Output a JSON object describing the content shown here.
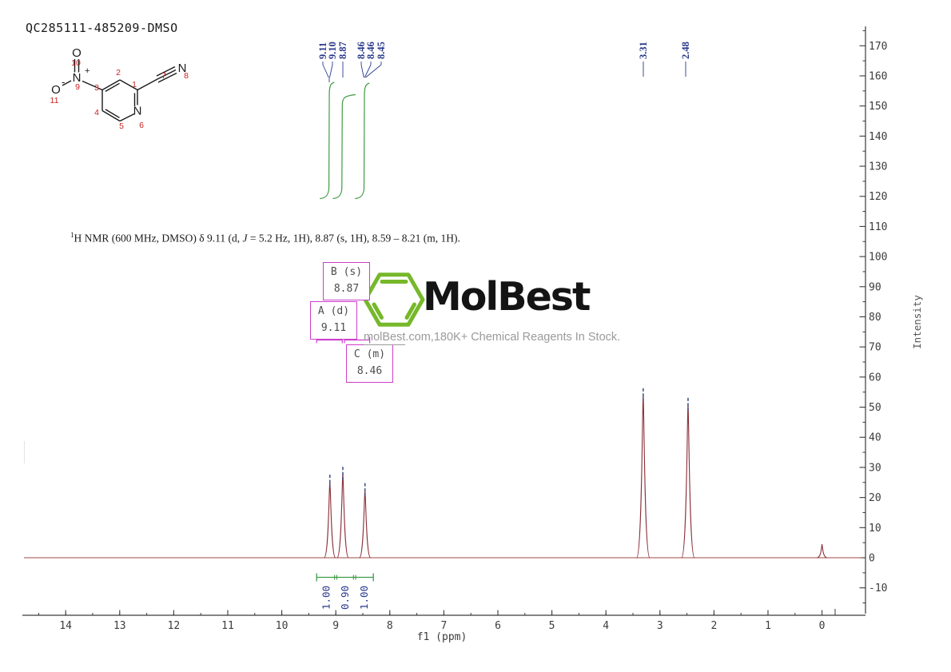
{
  "title": "QC285111-485209-DMSO",
  "annotation": {
    "sup": "1",
    "pre": "H NMR (600 MHz, DMSO) δ 9.11 (d, ",
    "j": "J",
    "post": " = 5.2 Hz, 1H), 8.87 (s, 1H), 8.59 – 8.21 (m, 1H)."
  },
  "structure": {
    "atom_symbols": {
      "ring_n": "N",
      "nitrile_n": "N",
      "nitro_n": "N",
      "o_top": "O",
      "o_left": "O"
    },
    "charges": {
      "plus": "+",
      "minus": "-"
    },
    "atom_numbers": [
      "1",
      "2",
      "3",
      "4",
      "5",
      "6",
      "7",
      "8",
      "9",
      "10",
      "11"
    ]
  },
  "logo": {
    "name": "MolBest",
    "tagline_link": "molBest",
    "tagline_rest": ".com,180K+ Chemical Reagents In Stock."
  },
  "multiplets": [
    {
      "id": "A",
      "type": "(d)",
      "shift": "9.11"
    },
    {
      "id": "B",
      "type": "(s)",
      "shift": "8.87"
    },
    {
      "id": "C",
      "type": "(m)",
      "shift": "8.46"
    }
  ],
  "colors": {
    "peak": "#8a3039",
    "baseline": "#a04848",
    "navy": "#2a3a8c",
    "integral_green": "#3f9b45",
    "magenta": "#cc3fcc",
    "axis": "#3a3a3a",
    "logo_green": "#76b82a",
    "atom_number_red": "#cc2222"
  },
  "chart_data": {
    "type": "line",
    "title": "1H NMR spectrum QC285111-485209 in DMSO",
    "xlabel": "f1 (ppm)",
    "ylabel": "Intensity",
    "xlim": [
      14.8,
      -0.3
    ],
    "ylim": [
      -19,
      176
    ],
    "x_ticks": [
      14,
      13,
      12,
      11,
      10,
      9,
      8,
      7,
      6,
      5,
      4,
      3,
      2,
      1,
      0
    ],
    "y_ticks": [
      170,
      160,
      150,
      140,
      130,
      120,
      110,
      100,
      90,
      80,
      70,
      60,
      50,
      40,
      30,
      20,
      10,
      0,
      -10
    ],
    "peaks": [
      {
        "ppm": 9.11,
        "intensity": 25.2,
        "marker": true
      },
      {
        "ppm": 8.87,
        "intensity": 27.8,
        "marker": true
      },
      {
        "ppm": 8.46,
        "intensity": 22.4,
        "marker": true
      },
      {
        "ppm": 3.31,
        "intensity": 53.9,
        "marker": true
      },
      {
        "ppm": 2.48,
        "intensity": 50.7,
        "marker": true
      },
      {
        "ppm": 0.0,
        "intensity": 4.5,
        "marker": false
      }
    ],
    "peak_picking_labels": [
      "9.11",
      "9.10",
      "8.87",
      "8.46",
      "8.46",
      "8.45",
      "3.31",
      "2.48"
    ],
    "integrals": [
      {
        "label": "1.00",
        "ppm_from": 9.355,
        "ppm_to": 9.005
      },
      {
        "label": "0.90",
        "ppm_from": 9.005,
        "ppm_to": 8.655
      },
      {
        "label": "1.00",
        "ppm_from": 8.655,
        "ppm_to": 8.305
      }
    ]
  }
}
